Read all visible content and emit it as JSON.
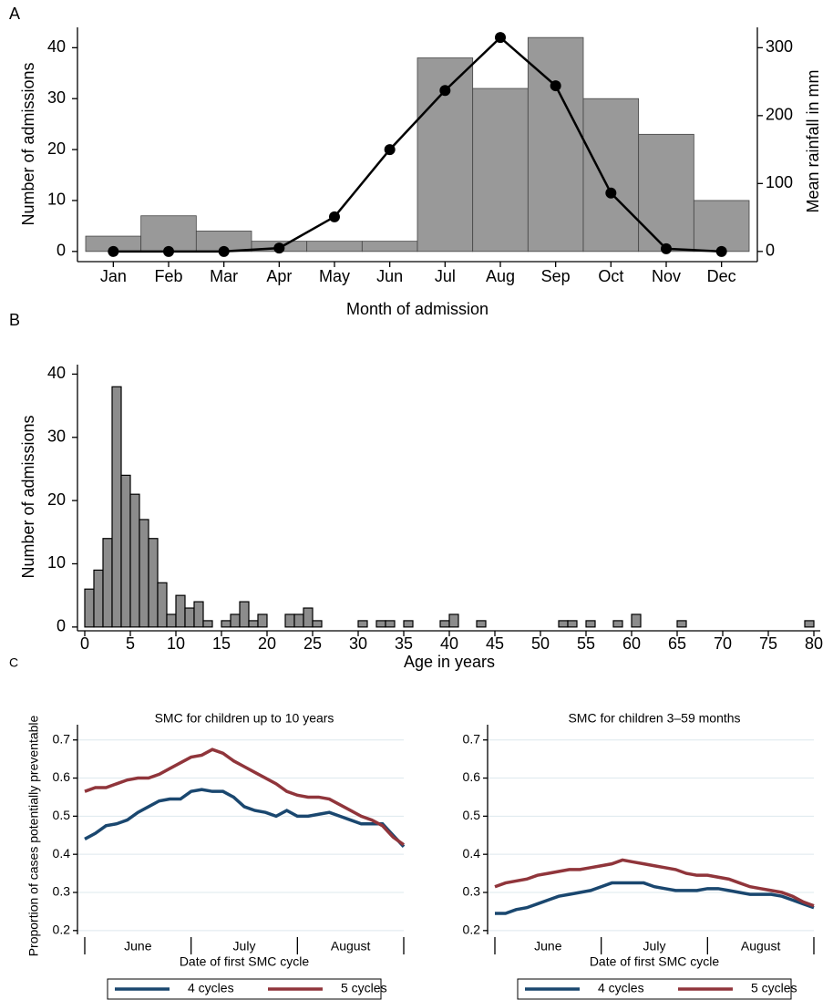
{
  "chart_data": [
    {
      "type": "bar",
      "panel": "A",
      "xlabel": "Month of admission",
      "ylabel": "Number of admissions",
      "y2label": "Mean rainfall in mm",
      "categories": [
        "Jan",
        "Feb",
        "Mar",
        "Apr",
        "May",
        "Jun",
        "Jul",
        "Aug",
        "Sep",
        "Oct",
        "Nov",
        "Dec"
      ],
      "series": [
        {
          "type": "bar",
          "color": "#999999",
          "values": [
            3,
            7,
            4,
            2,
            2,
            2,
            38,
            32,
            42,
            30,
            23,
            10
          ]
        },
        {
          "type": "line",
          "color": "#000000",
          "axis": "y2",
          "values": [
            0,
            0,
            0,
            5,
            51,
            150,
            237,
            315,
            244,
            86,
            4,
            0
          ]
        }
      ],
      "ylim": [
        -2,
        44
      ],
      "yticks": [
        0,
        10,
        20,
        30,
        40
      ],
      "y2lim": [
        -15,
        330
      ],
      "y2ticks": [
        0,
        100,
        200,
        300
      ]
    },
    {
      "type": "histogram",
      "panel": "B",
      "xlabel": "Age in years",
      "ylabel": "Number of admissions",
      "color": "#8c8c8c",
      "bins": [
        0,
        1,
        2,
        3,
        4,
        5,
        6,
        7,
        8,
        9,
        10,
        11,
        12,
        13,
        14,
        15,
        16,
        17,
        18,
        19,
        20,
        21,
        22,
        23,
        24,
        25,
        26,
        27,
        28,
        29,
        30,
        31,
        32,
        33,
        34,
        35,
        36,
        37,
        38,
        39,
        40,
        41,
        42,
        43,
        44,
        45,
        46,
        47,
        48,
        49,
        50,
        51,
        52,
        53,
        54,
        55,
        56,
        57,
        58,
        59,
        60,
        61,
        62,
        63,
        64,
        65,
        66,
        67,
        68,
        69,
        70,
        71,
        72,
        73,
        74,
        75,
        76,
        77,
        78,
        79,
        80
      ],
      "values": [
        6,
        9,
        14,
        38,
        24,
        21,
        17,
        14,
        7,
        2,
        5,
        3,
        4,
        1,
        0,
        1,
        2,
        4,
        1,
        2,
        0,
        0,
        2,
        2,
        3,
        1,
        0,
        0,
        0,
        0,
        1,
        0,
        1,
        1,
        0,
        1,
        0,
        0,
        0,
        1,
        2,
        0,
        0,
        1,
        0,
        0,
        0,
        0,
        0,
        0,
        0,
        0,
        1,
        1,
        0,
        1,
        0,
        0,
        1,
        0,
        2,
        0,
        0,
        0,
        0,
        1,
        0,
        0,
        0,
        0,
        0,
        0,
        0,
        0,
        0,
        0,
        0,
        0,
        0,
        1
      ],
      "xlim": [
        -0.8,
        80.7
      ],
      "xticks": [
        0,
        5,
        10,
        15,
        20,
        25,
        30,
        35,
        40,
        45,
        50,
        55,
        60,
        65,
        70,
        75,
        80
      ],
      "ylim": [
        -0.6,
        41.5
      ],
      "yticks": [
        0,
        10,
        20,
        30,
        40
      ]
    },
    {
      "type": "line",
      "panel": "C",
      "title": "SMC for children up to 10 years",
      "ylabel": "Proportion of cases potentially preventable",
      "xlabel": "Date of first SMC cycle",
      "months": [
        "June",
        "July",
        "August"
      ],
      "grid": true,
      "ylim": [
        0.19,
        0.74
      ],
      "yticks": [
        0.2,
        0.3,
        0.4,
        0.5,
        0.6,
        0.7
      ],
      "series": [
        {
          "name": "4 cycles",
          "color": "#1a476f",
          "values": [
            0.44,
            0.455,
            0.475,
            0.48,
            0.49,
            0.51,
            0.525,
            0.54,
            0.545,
            0.545,
            0.565,
            0.57,
            0.565,
            0.565,
            0.55,
            0.525,
            0.515,
            0.51,
            0.5,
            0.515,
            0.5,
            0.5,
            0.505,
            0.51,
            0.5,
            0.49,
            0.48,
            0.48,
            0.48,
            0.45,
            0.42
          ]
        },
        {
          "name": "5 cycles",
          "color": "#90353b",
          "values": [
            0.565,
            0.575,
            0.575,
            0.585,
            0.595,
            0.6,
            0.6,
            0.61,
            0.625,
            0.64,
            0.655,
            0.66,
            0.675,
            0.665,
            0.645,
            0.63,
            0.615,
            0.6,
            0.585,
            0.565,
            0.555,
            0.55,
            0.55,
            0.545,
            0.53,
            0.515,
            0.5,
            0.49,
            0.475,
            0.445,
            0.425
          ]
        }
      ]
    },
    {
      "type": "line",
      "title": "SMC for children 3–59 months",
      "xlabel": "Date of first SMC cycle",
      "months": [
        "June",
        "July",
        "August"
      ],
      "grid": true,
      "ylim": [
        0.19,
        0.74
      ],
      "yticks": [
        0.2,
        0.3,
        0.4,
        0.5,
        0.6,
        0.7
      ],
      "series": [
        {
          "name": "4 cycles",
          "color": "#1a476f",
          "values": [
            0.245,
            0.245,
            0.255,
            0.26,
            0.27,
            0.28,
            0.29,
            0.295,
            0.3,
            0.305,
            0.315,
            0.325,
            0.325,
            0.325,
            0.325,
            0.315,
            0.31,
            0.305,
            0.305,
            0.305,
            0.31,
            0.31,
            0.305,
            0.3,
            0.295,
            0.295,
            0.295,
            0.29,
            0.28,
            0.27,
            0.26
          ]
        },
        {
          "name": "5 cycles",
          "color": "#90353b",
          "values": [
            0.315,
            0.325,
            0.33,
            0.335,
            0.345,
            0.35,
            0.355,
            0.36,
            0.36,
            0.365,
            0.37,
            0.375,
            0.385,
            0.38,
            0.375,
            0.37,
            0.365,
            0.36,
            0.35,
            0.345,
            0.345,
            0.34,
            0.335,
            0.325,
            0.315,
            0.31,
            0.305,
            0.3,
            0.29,
            0.275,
            0.265
          ]
        }
      ]
    }
  ]
}
